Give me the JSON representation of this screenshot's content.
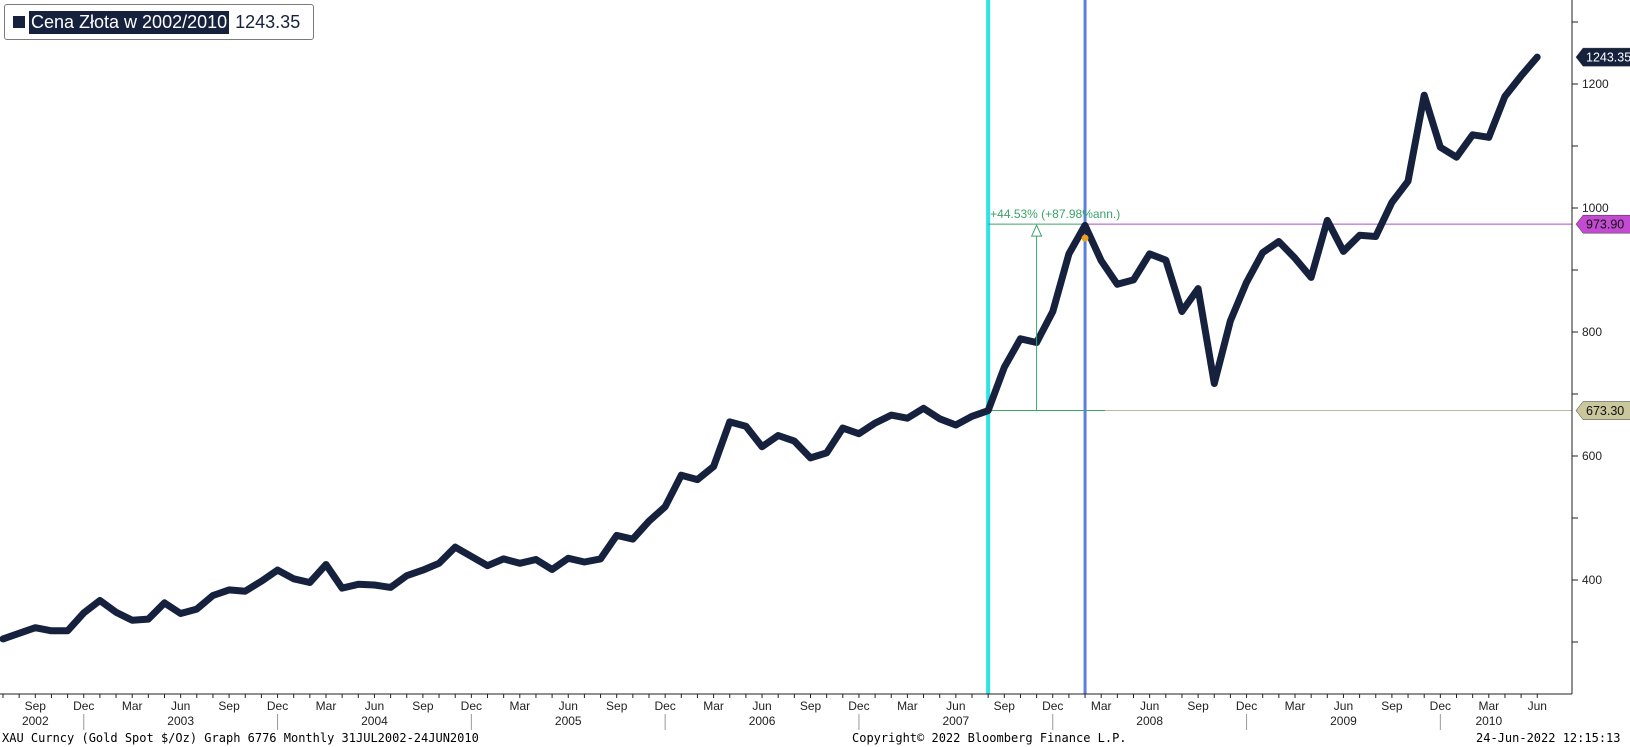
{
  "legend": {
    "name": "Cena Złota w 2002/2010",
    "value": "1243.35"
  },
  "footer": {
    "left": "XAU Curncy (Gold Spot  $/Oz) Graph 6776  Monthly 31JUL2002-24JUN2010",
    "center": "Copyright© 2022 Bloomberg Finance L.P.",
    "right": "24-Jun-2022 12:15:13"
  },
  "colors": {
    "series": "#16213d",
    "cyan_line": "#2ee3e6",
    "blue_line": "#5b7fe0",
    "purple_line": "#a84fcf",
    "green_line": "#3aa36a",
    "last_label_bg": "#16213d",
    "high_label_bg": "#c24bd1",
    "low_label_bg": "#c9c79b"
  },
  "chart_data": {
    "type": "line",
    "title": "Cena Złota w 2002/2010",
    "series": [
      {
        "name": "Cena Złota w 2002/2010",
        "x": [
          "2002-07",
          "2002-08",
          "2002-09",
          "2002-10",
          "2002-11",
          "2002-12",
          "2003-01",
          "2003-02",
          "2003-03",
          "2003-04",
          "2003-05",
          "2003-06",
          "2003-07",
          "2003-08",
          "2003-09",
          "2003-10",
          "2003-11",
          "2003-12",
          "2004-01",
          "2004-02",
          "2004-03",
          "2004-04",
          "2004-05",
          "2004-06",
          "2004-07",
          "2004-08",
          "2004-09",
          "2004-10",
          "2004-11",
          "2004-12",
          "2005-01",
          "2005-02",
          "2005-03",
          "2005-04",
          "2005-05",
          "2005-06",
          "2005-07",
          "2005-08",
          "2005-09",
          "2005-10",
          "2005-11",
          "2005-12",
          "2006-01",
          "2006-02",
          "2006-03",
          "2006-04",
          "2006-05",
          "2006-06",
          "2006-07",
          "2006-08",
          "2006-09",
          "2006-10",
          "2006-11",
          "2006-12",
          "2007-01",
          "2007-02",
          "2007-03",
          "2007-04",
          "2007-05",
          "2007-06",
          "2007-07",
          "2007-08",
          "2007-09",
          "2007-10",
          "2007-11",
          "2007-12",
          "2008-01",
          "2008-02",
          "2008-03",
          "2008-04",
          "2008-05",
          "2008-06",
          "2008-07",
          "2008-08",
          "2008-09",
          "2008-10",
          "2008-11",
          "2008-12",
          "2009-01",
          "2009-02",
          "2009-03",
          "2009-04",
          "2009-05",
          "2009-06",
          "2009-07",
          "2009-08",
          "2009-09",
          "2009-10",
          "2009-11",
          "2009-12",
          "2010-01",
          "2010-02",
          "2010-03",
          "2010-04",
          "2010-05",
          "2010-06"
        ],
        "values": [
          305,
          314,
          323,
          318,
          318,
          347,
          367,
          348,
          335,
          337,
          363,
          346,
          353,
          375,
          384,
          382,
          398,
          416,
          402,
          396,
          425,
          387,
          393,
          392,
          388,
          407,
          416,
          427,
          453,
          438,
          423,
          434,
          427,
          433,
          417,
          435,
          429,
          434,
          472,
          466,
          495,
          518,
          569,
          562,
          583,
          655,
          648,
          615,
          633,
          624,
          597,
          605,
          645,
          636,
          653,
          666,
          661,
          677,
          660,
          650,
          664,
          673,
          743,
          789,
          783,
          833,
          926,
          972,
          915,
          877,
          884,
          926,
          916,
          833,
          870,
          717,
          818,
          880,
          928,
          946,
          919,
          888,
          980,
          930,
          956,
          954,
          1009,
          1043,
          1182,
          1098,
          1082,
          1118,
          1114,
          1180,
          1213,
          1243.35
        ]
      }
    ],
    "ylim": [
      250,
      1360
    ],
    "yticks": [
      400,
      600,
      800,
      1000,
      1200
    ],
    "ytick_labels": [
      "400",
      "600",
      "800",
      "1000",
      "1200"
    ],
    "month_labels": [
      {
        "x": "2002-09",
        "label": "Sep"
      },
      {
        "x": "2002-12",
        "label": "Dec"
      },
      {
        "x": "2003-03",
        "label": "Mar"
      },
      {
        "x": "2003-06",
        "label": "Jun"
      },
      {
        "x": "2003-09",
        "label": "Sep"
      },
      {
        "x": "2003-12",
        "label": "Dec"
      },
      {
        "x": "2004-03",
        "label": "Mar"
      },
      {
        "x": "2004-06",
        "label": "Jun"
      },
      {
        "x": "2004-09",
        "label": "Sep"
      },
      {
        "x": "2004-12",
        "label": "Dec"
      },
      {
        "x": "2005-03",
        "label": "Mar"
      },
      {
        "x": "2005-06",
        "label": "Jun"
      },
      {
        "x": "2005-09",
        "label": "Sep"
      },
      {
        "x": "2005-12",
        "label": "Dec"
      },
      {
        "x": "2006-03",
        "label": "Mar"
      },
      {
        "x": "2006-06",
        "label": "Jun"
      },
      {
        "x": "2006-09",
        "label": "Sep"
      },
      {
        "x": "2006-12",
        "label": "Dec"
      },
      {
        "x": "2007-03",
        "label": "Mar"
      },
      {
        "x": "2007-06",
        "label": "Jun"
      },
      {
        "x": "2007-09",
        "label": "Sep"
      },
      {
        "x": "2007-12",
        "label": "Dec"
      },
      {
        "x": "2008-03",
        "label": "Mar"
      },
      {
        "x": "2008-06",
        "label": "Jun"
      },
      {
        "x": "2008-09",
        "label": "Sep"
      },
      {
        "x": "2008-12",
        "label": "Dec"
      },
      {
        "x": "2009-03",
        "label": "Mar"
      },
      {
        "x": "2009-06",
        "label": "Jun"
      },
      {
        "x": "2009-09",
        "label": "Sep"
      },
      {
        "x": "2009-12",
        "label": "Dec"
      },
      {
        "x": "2010-03",
        "label": "Mar"
      },
      {
        "x": "2010-06",
        "label": "Jun"
      }
    ],
    "year_labels": [
      {
        "x": "2002-09",
        "label": "2002"
      },
      {
        "x": "2003-06",
        "label": "2003"
      },
      {
        "x": "2004-06",
        "label": "2004"
      },
      {
        "x": "2005-06",
        "label": "2005"
      },
      {
        "x": "2006-06",
        "label": "2006"
      },
      {
        "x": "2007-06",
        "label": "2007"
      },
      {
        "x": "2008-06",
        "label": "2008"
      },
      {
        "x": "2009-06",
        "label": "2009"
      },
      {
        "x": "2010-03",
        "label": "2010"
      }
    ],
    "year_separators": [
      "2002-12",
      "2003-12",
      "2004-12",
      "2005-12",
      "2006-12",
      "2007-12",
      "2008-12",
      "2009-12"
    ],
    "markers": {
      "start_line_x": "2007-08",
      "end_line_x": "2008-02",
      "high_level": 973.9,
      "high_label": "973.90",
      "low_level": 673.3,
      "low_label": "673.30",
      "last_label": "1243.35",
      "measure_x": "2007-11",
      "annotation": "+44.53% (+87.98%ann.)"
    },
    "grid": false,
    "legend_position": "top-left"
  }
}
